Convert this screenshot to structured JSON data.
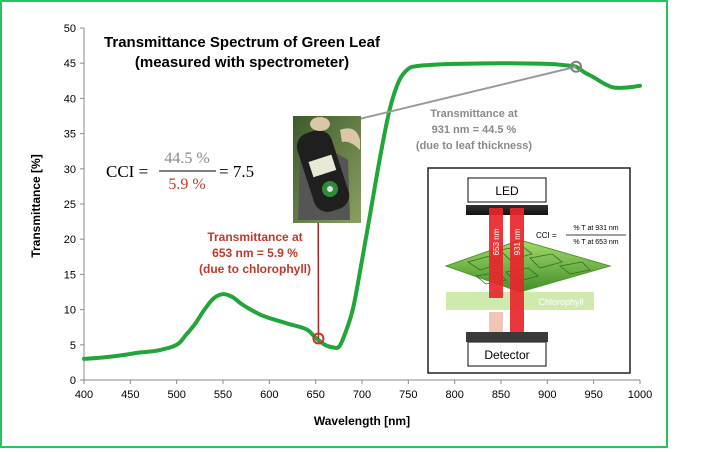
{
  "chart_data": {
    "type": "line",
    "title": "Transmittance Spectrum of Green Leaf",
    "subtitle": "(measured with spectrometer)",
    "xlabel": "Wavelength [nm]",
    "ylabel": "Transmittance [%]",
    "xlim": [
      400,
      1000
    ],
    "ylim": [
      0,
      50
    ],
    "xticks": [
      "400",
      "450",
      "500",
      "550",
      "600",
      "650",
      "700",
      "750",
      "800",
      "850",
      "900",
      "950",
      "1000"
    ],
    "yticks": [
      "0",
      "5",
      "10",
      "15",
      "20",
      "25",
      "30",
      "35",
      "40",
      "45",
      "50"
    ],
    "grid": false,
    "line_color": "#22a53a",
    "series": [
      {
        "x": [
          400,
          420,
          440,
          460,
          480,
          500,
          510,
          520,
          530,
          540,
          550,
          560,
          570,
          580,
          590,
          600,
          620,
          640,
          650,
          660,
          670,
          675,
          680,
          690,
          700,
          710,
          720,
          730,
          740,
          750,
          760,
          780,
          800,
          850,
          900,
          920,
          931,
          940,
          950,
          960,
          970,
          980,
          990,
          1000
        ],
        "y": [
          3.0,
          3.2,
          3.5,
          3.9,
          4.2,
          5.0,
          6.4,
          8.0,
          10.0,
          11.6,
          12.2,
          11.8,
          10.8,
          10.0,
          9.3,
          8.8,
          8.0,
          7.2,
          6.0,
          5.0,
          4.6,
          4.7,
          6.0,
          10.0,
          17.0,
          24.5,
          32.0,
          38.5,
          42.5,
          44.2,
          44.6,
          44.8,
          44.9,
          45.0,
          44.9,
          44.7,
          44.5,
          43.7,
          43.0,
          42.2,
          41.6,
          41.5,
          41.6,
          41.8
        ]
      }
    ],
    "markers": [
      {
        "x": 653,
        "y": 5.9,
        "color": "#c0392b"
      },
      {
        "x": 931,
        "y": 44.5,
        "color": "#808080"
      }
    ],
    "annotations": {
      "nir_lines": [
        "Transmittance at",
        "931 nm = 44.5 %",
        "(due to leaf thickness)"
      ],
      "red_lines": [
        "Transmittance at",
        "653 nm = 5.9 %",
        "(due to chlorophyll)"
      ],
      "nir_color": "#8a8a8a",
      "red_color": "#c0392b"
    }
  },
  "formula": {
    "lhs": "CCI =",
    "numerator": "44.5 %",
    "denominator": "5.9 %",
    "result": "= 7.5"
  },
  "inset": {
    "led_label": "LED",
    "detector_label": "Detector",
    "beam_653": "653 nm",
    "beam_931": "931 nm",
    "cci_label": "CCI =",
    "cci_numerator": "% T at 931 nm",
    "cci_denominator": "% T at 653 nm",
    "chlorophyll_label": "Chlorophyll"
  },
  "photo": {
    "icon": "handheld-meter-photo"
  },
  "colors": {
    "frame": "#22c55e",
    "beam": "#e8262a",
    "leaf": "#7cc242"
  }
}
